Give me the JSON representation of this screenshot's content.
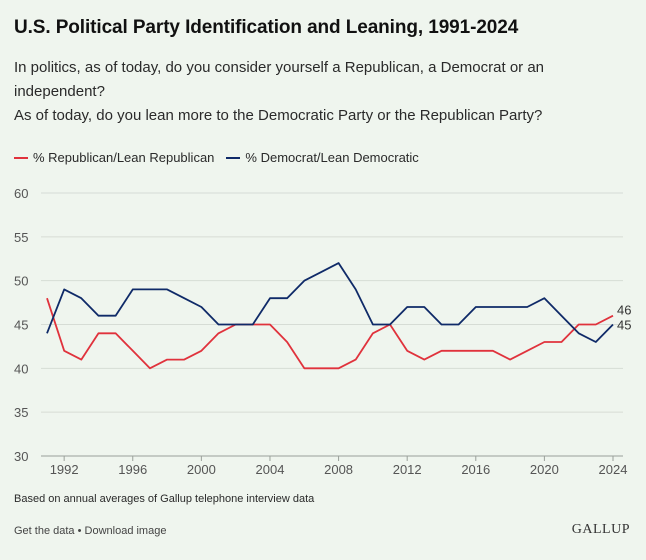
{
  "title": "U.S. Political Party Identification and Leaning, 1991-2024",
  "subtitle_lines": [
    "In politics, as of today, do you consider yourself a Republican, a Democrat or an independent?",
    "As of today, do you lean more to the Democratic Party or the Republican Party?"
  ],
  "footnote": "Based on annual averages of Gallup telephone interview data",
  "links": {
    "get_data": "Get the data",
    "separator": " • ",
    "download": "Download image"
  },
  "brand": "GALLUP",
  "colors": {
    "republican": "#e0323c",
    "democrat": "#0f2a68",
    "grid": "#d6dcd5",
    "axis_text": "#555555"
  },
  "chart_data": {
    "type": "line",
    "title": "U.S. Political Party Identification and Leaning, 1991-2024",
    "xlabel": "",
    "ylabel": "",
    "x": [
      1991,
      1992,
      1993,
      1994,
      1995,
      1996,
      1997,
      1998,
      1999,
      2000,
      2001,
      2002,
      2003,
      2004,
      2005,
      2006,
      2007,
      2008,
      2009,
      2010,
      2011,
      2012,
      2013,
      2014,
      2015,
      2016,
      2017,
      2018,
      2019,
      2020,
      2021,
      2022,
      2023,
      2024
    ],
    "xticks": [
      1992,
      1996,
      2000,
      2004,
      2008,
      2012,
      2016,
      2020,
      2024
    ],
    "xlim": [
      1991,
      2024
    ],
    "ylim": [
      30,
      60
    ],
    "yticks": [
      30,
      35,
      40,
      45,
      50,
      55,
      60
    ],
    "grid": true,
    "legend_position": "top-left",
    "series": [
      {
        "name": "% Republican/Lean Republican",
        "color": "#e0323c",
        "values": [
          48,
          42,
          41,
          44,
          44,
          42,
          40,
          41,
          41,
          42,
          44,
          45,
          45,
          45,
          43,
          40,
          40,
          40,
          41,
          44,
          45,
          42,
          41,
          42,
          42,
          42,
          42,
          41,
          42,
          43,
          43,
          45,
          45,
          46
        ],
        "end_label": "46"
      },
      {
        "name": "% Democrat/Lean Democratic",
        "color": "#0f2a68",
        "values": [
          44,
          49,
          48,
          46,
          46,
          49,
          49,
          49,
          48,
          47,
          45,
          45,
          45,
          48,
          48,
          50,
          51,
          52,
          49,
          45,
          45,
          47,
          47,
          45,
          45,
          47,
          47,
          47,
          47,
          48,
          46,
          44,
          43,
          45
        ],
        "end_label": "45"
      }
    ]
  }
}
